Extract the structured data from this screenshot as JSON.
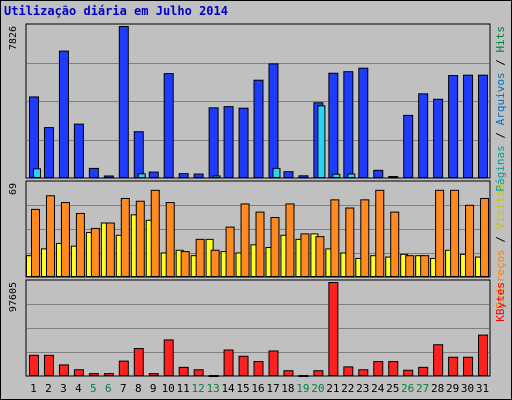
{
  "title": "Utilização diária em Julho 2014",
  "colors": {
    "background": "#c0c0c0",
    "grid": "#808080",
    "hits": "#1e3cff",
    "files": "#2ad4f0",
    "visits": "#ffff22",
    "pages": "#ff8a22",
    "kbytes": "#ff2020",
    "weekend_label": "#008040",
    "day_label": "#000000",
    "title": "#0000c8",
    "label_hits": "#008040",
    "label_files": "#0070c0",
    "label_pages": "#00a0a0",
    "label_visits": "#c8c800",
    "label_entries": "#ff8000",
    "label_kbytes": "#ff0000"
  },
  "chart_data": [
    {
      "type": "bar",
      "panel": "hits",
      "max_label": "7826",
      "ymax": 7826,
      "categories": [
        "1",
        "2",
        "3",
        "4",
        "5",
        "6",
        "7",
        "8",
        "9",
        "10",
        "11",
        "12",
        "13",
        "14",
        "15",
        "16",
        "17",
        "18",
        "19",
        "20",
        "21",
        "22",
        "23",
        "24",
        "25",
        "26",
        "27",
        "28",
        "29",
        "30",
        "31"
      ],
      "weekend_days": [
        "5",
        "6",
        "12",
        "13",
        "19",
        "20",
        "26",
        "27"
      ],
      "series": [
        {
          "name": "Hits",
          "values": [
            4200,
            2620,
            6560,
            2800,
            520,
            130,
            7826,
            2410,
            330,
            5400,
            250,
            230,
            3640,
            3700,
            3620,
            5060,
            5900,
            350,
            140,
            3900,
            5420,
            5500,
            5680,
            420,
            100,
            3250,
            4360,
            4080,
            5300,
            5320,
            5320
          ]
        },
        {
          "name": "Arquivos",
          "values": [
            500,
            0,
            0,
            0,
            0,
            0,
            0,
            240,
            0,
            0,
            0,
            0,
            130,
            0,
            0,
            0,
            520,
            0,
            0,
            3740,
            220,
            230,
            0,
            0,
            0,
            0,
            0,
            0,
            0,
            0,
            0
          ]
        },
        {
          "name": "Páginas",
          "values": [
            0,
            0,
            0,
            0,
            0,
            0,
            0,
            0,
            0,
            0,
            0,
            0,
            0,
            0,
            0,
            0,
            0,
            0,
            0,
            0,
            0,
            0,
            0,
            0,
            0,
            0,
            0,
            0,
            0,
            0,
            0
          ]
        }
      ],
      "side_labels": [
        "Hits",
        "Arquivos",
        "Páginas"
      ]
    },
    {
      "type": "bar",
      "panel": "visits",
      "max_label": "69",
      "ymax": 69,
      "categories": [
        "1",
        "2",
        "3",
        "4",
        "5",
        "6",
        "7",
        "8",
        "9",
        "10",
        "11",
        "12",
        "13",
        "14",
        "15",
        "16",
        "17",
        "18",
        "19",
        "20",
        "21",
        "22",
        "23",
        "24",
        "25",
        "26",
        "27",
        "28",
        "29",
        "30",
        "31"
      ],
      "series": [
        {
          "name": "Visitas",
          "values": [
            16,
            21,
            25,
            23,
            33,
            40,
            31,
            46,
            42,
            18,
            20,
            16,
            28,
            19,
            18,
            24,
            22,
            31,
            28,
            32,
            21,
            18,
            14,
            16,
            15,
            17,
            16,
            14,
            20,
            17,
            15
          ]
        },
        {
          "name": "Endereços",
          "values": [
            50,
            60,
            55,
            47,
            36,
            40,
            58,
            56,
            64,
            55,
            19,
            28,
            20,
            37,
            54,
            48,
            44,
            54,
            32,
            30,
            57,
            51,
            57,
            64,
            48,
            16,
            16,
            64,
            64,
            53,
            58
          ]
        }
      ],
      "side_labels": [
        "Endereços",
        "Visitas"
      ]
    },
    {
      "type": "bar",
      "panel": "kbytes",
      "max_label": "97605",
      "ymax": 97605,
      "categories": [
        "1",
        "2",
        "3",
        "4",
        "5",
        "6",
        "7",
        "8",
        "9",
        "10",
        "11",
        "12",
        "13",
        "14",
        "15",
        "16",
        "17",
        "18",
        "19",
        "20",
        "21",
        "22",
        "23",
        "24",
        "25",
        "26",
        "27",
        "28",
        "29",
        "30",
        "31"
      ],
      "series": [
        {
          "name": "KBytes",
          "values": [
            22000,
            22000,
            12000,
            7000,
            3000,
            3000,
            16000,
            29000,
            3000,
            38000,
            9500,
            7000,
            1000,
            27500,
            21000,
            15500,
            26500,
            6000,
            1000,
            6000,
            97605,
            10000,
            7000,
            15500,
            15500,
            6500,
            9500,
            33000,
            20000,
            20000,
            43000
          ]
        }
      ],
      "side_labels": [
        "KBytes"
      ]
    }
  ]
}
